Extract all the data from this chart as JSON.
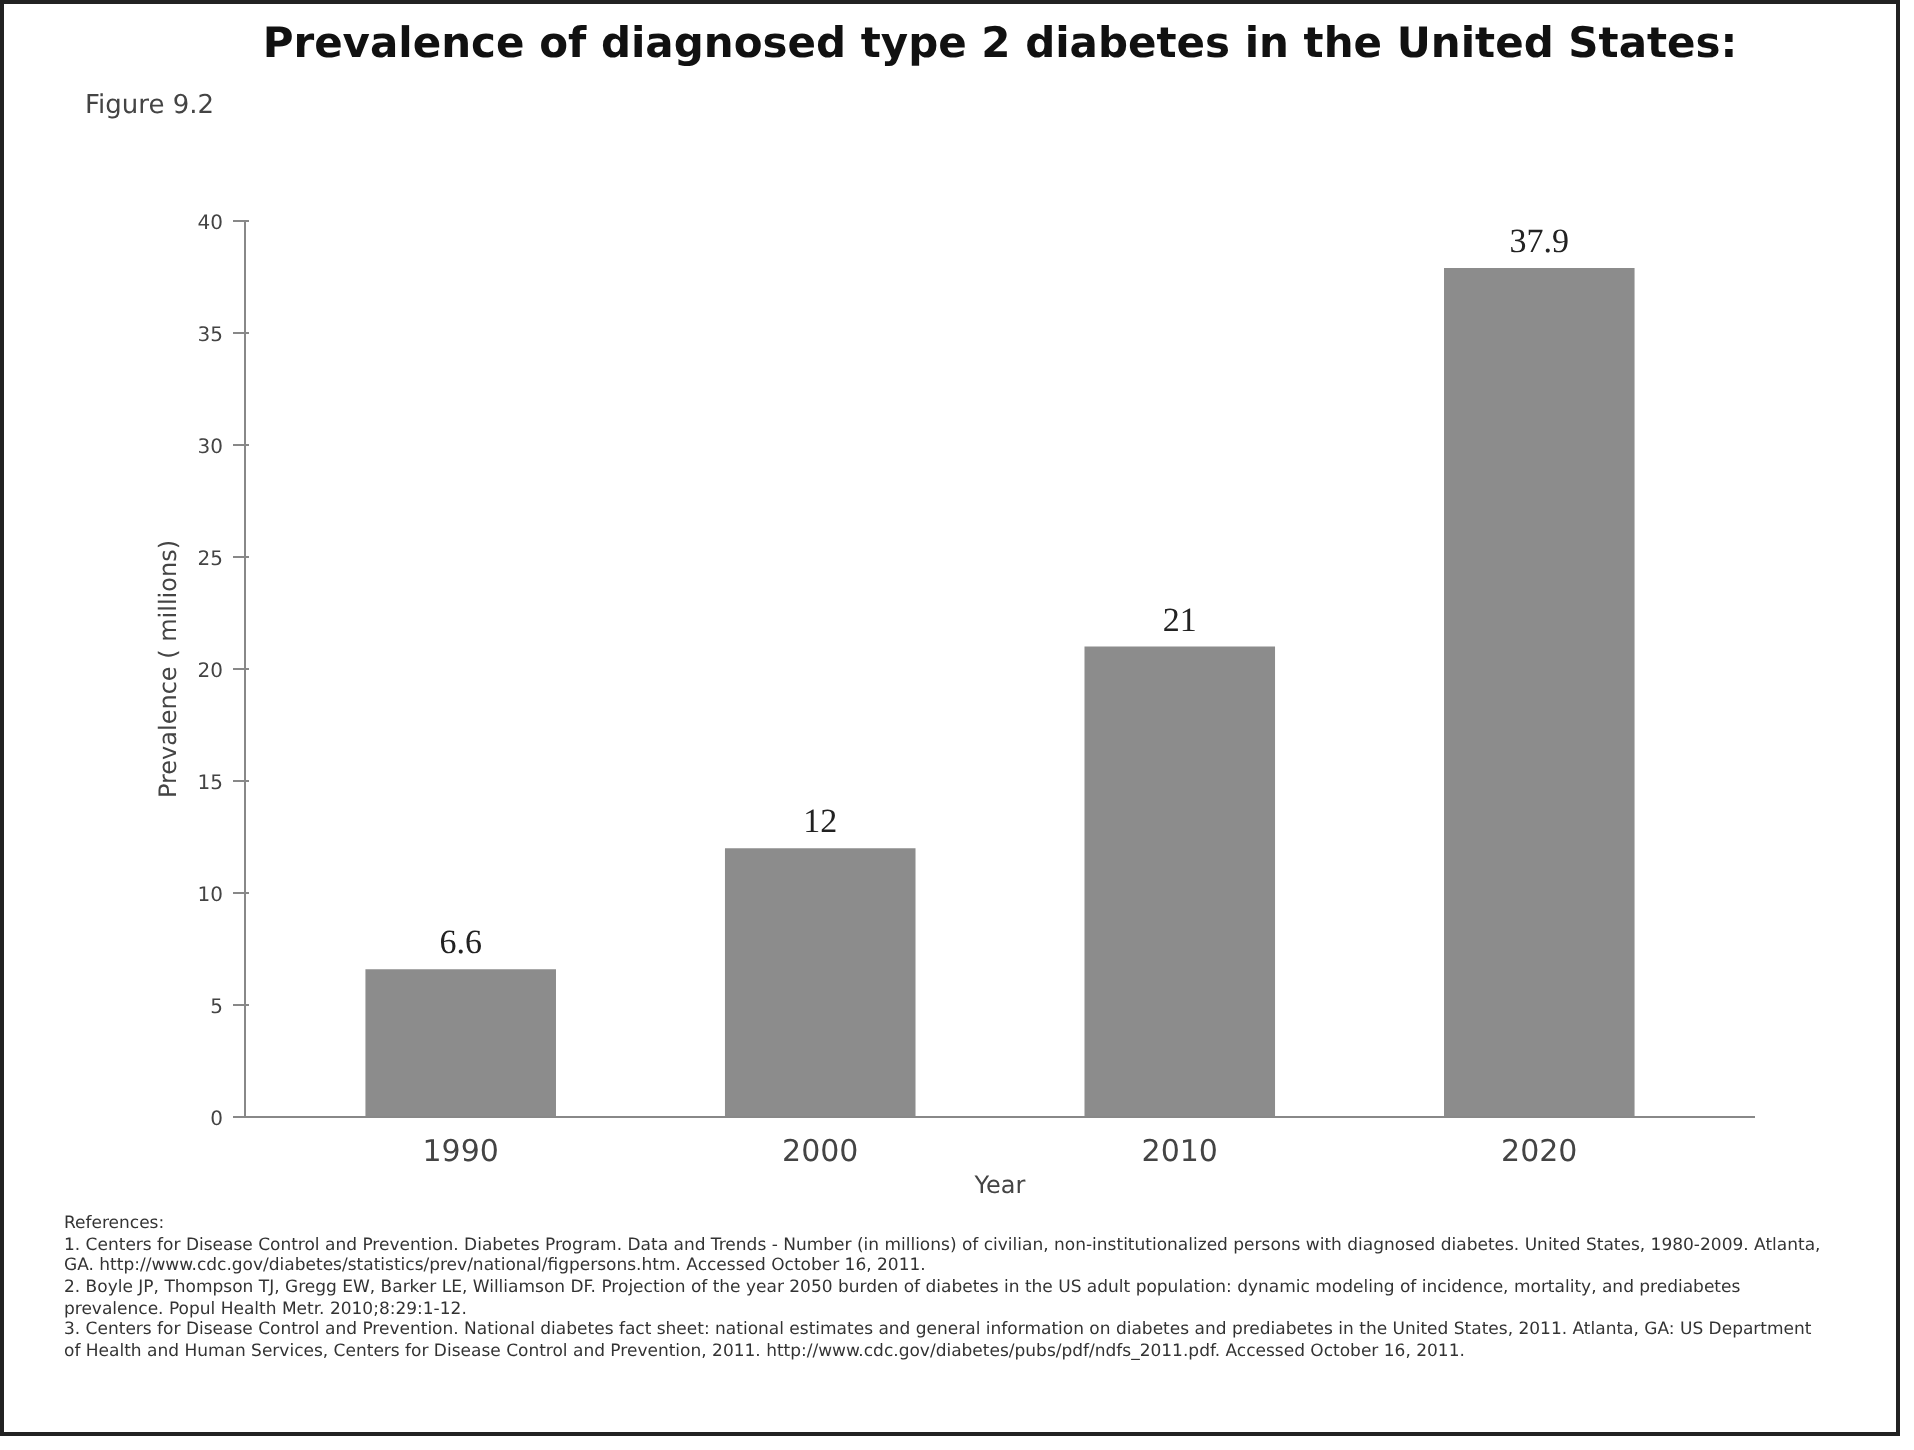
{
  "chart_data": {
    "type": "bar",
    "title": "Prevalence of diagnosed type 2 diabetes in the United States:",
    "xlabel": "Year",
    "ylabel": "Prevalence ( millions)",
    "categories": [
      "1990",
      "2000",
      "2010",
      "2020"
    ],
    "values": [
      6.6,
      12,
      21,
      37.9
    ],
    "color": "#8c8c8c",
    "ylim": [
      0,
      40
    ],
    "yticks": [
      0,
      5,
      10,
      15,
      20,
      25,
      30,
      35,
      40
    ],
    "grid": false,
    "data_labels": true,
    "annotations": [
      "Figure 9.2",
      "References:",
      "1. Centers for Disease Control and Prevention. Diabetes Program. Data and Trends - Number (in millions) of civilian, non-institutionalized persons with diagnosed diabetes. United States, 1980-2009. Atlanta, GA. http://www.cdc.gov/diabetes/statistics/prev/national/figpersons.htm. Accessed October 16, 2011.",
      "2. Boyle JP, Thompson TJ, Gregg EW, Barker LE, Williamson DF. Projection of the year 2050 burden of diabetes in the US adult population: dynamic modeling of incidence, mortality, and prediabetes prevalence. Popul Health Metr. 2010;8:29:1-12.",
      "3. Centers for Disease Control and Prevention. National diabetes fact sheet: national estimates and general information on diabetes and prediabetes in the United States, 2011. Atlanta, GA: US Department of Health and Human Services, Centers for Disease Control and Prevention, 2011. http://www.cdc.gov/diabetes/pubs/pdf/ndfs_2011.pdf. Accessed October 16, 2011."
    ]
  }
}
